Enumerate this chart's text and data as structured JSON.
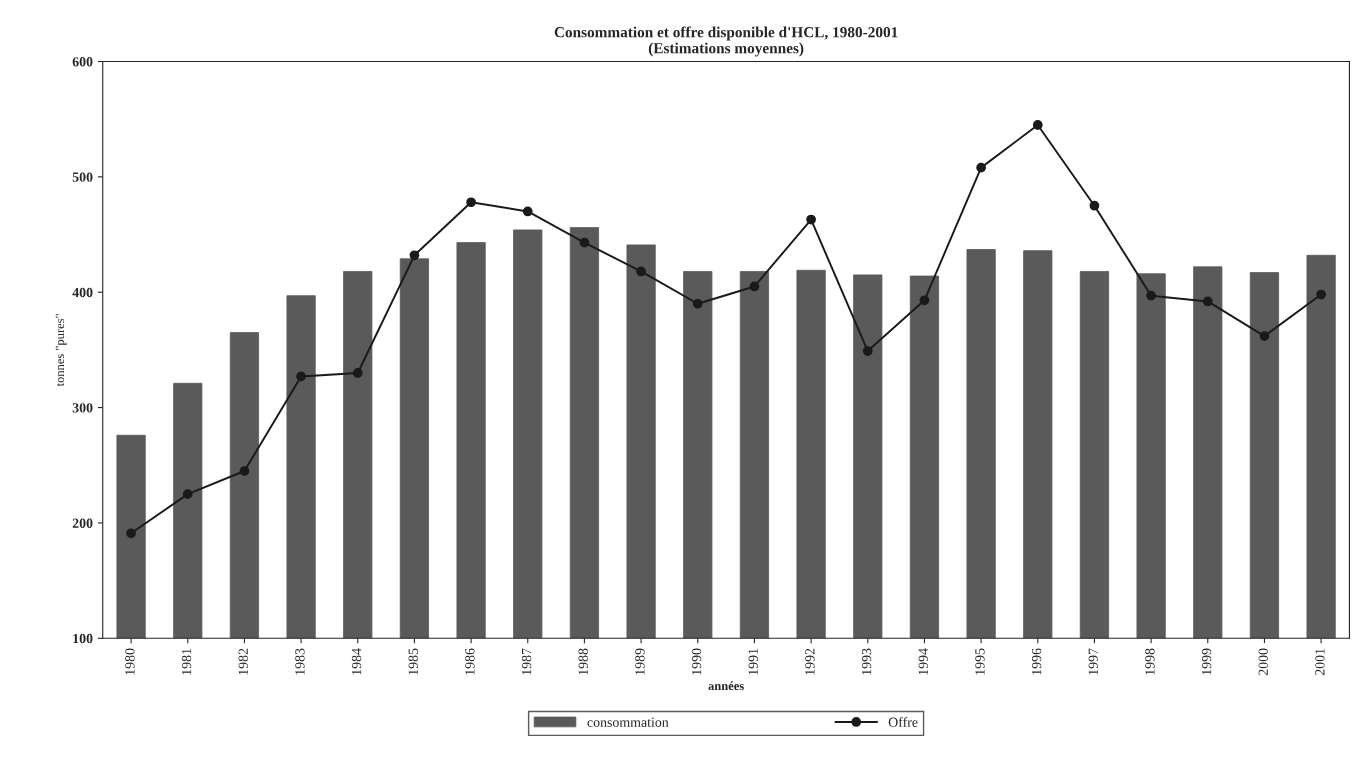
{
  "chart_data": {
    "type": "bar",
    "title": "Consommation et offre disponible d'HCL, 1980-2001\n(Estimations moyennes)",
    "xlabel": "années",
    "ylabel": "tonnes \"pures\"",
    "categories": [
      "1980",
      "1981",
      "1982",
      "1983",
      "1984",
      "1985",
      "1986",
      "1987",
      "1988",
      "1989",
      "1990",
      "1991",
      "1992",
      "1993",
      "1994",
      "1995",
      "1996",
      "1997",
      "1998",
      "1999",
      "2000",
      "2001"
    ],
    "series": [
      {
        "name": "consommation",
        "color": "#5a5a5a",
        "values": [
          276,
          321,
          365,
          397,
          418,
          429,
          443,
          454,
          456,
          441,
          418,
          418,
          419,
          415,
          414,
          437,
          436,
          418,
          416,
          422,
          417,
          432
        ]
      },
      {
        "name": "Offre",
        "type": "line",
        "color": "#1a1a1a",
        "marker": "circle",
        "values": [
          191,
          225,
          245,
          327,
          330,
          432,
          478,
          470,
          443,
          418,
          390,
          405,
          463,
          349,
          393,
          508,
          545,
          475,
          397,
          392,
          362,
          398
        ]
      }
    ],
    "ylim": [
      100,
      600
    ],
    "yticks": [
      100,
      200,
      300,
      400,
      500,
      600
    ],
    "grid": false,
    "legend": "bottom"
  }
}
